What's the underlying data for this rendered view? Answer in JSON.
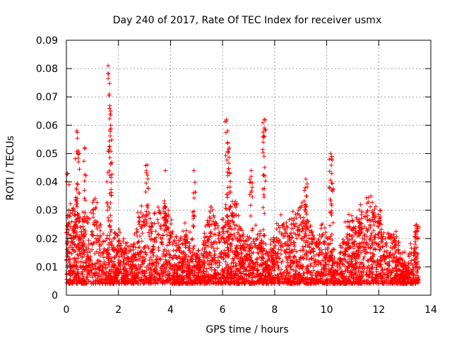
{
  "chart_data": {
    "type": "scatter",
    "title": "Day 240 of 2017, Rate Of TEC Index for receiver usmx",
    "xlabel": "GPS time / hours",
    "ylabel": "ROTI / TECUs",
    "xlim": [
      0,
      14
    ],
    "ylim": [
      0,
      0.09
    ],
    "xticks": [
      "0",
      "2",
      "4",
      "6",
      "8",
      "10",
      "12",
      "14"
    ],
    "yticks": [
      "0",
      "0.01",
      "0.02",
      "0.03",
      "0.04",
      "0.05",
      "0.06",
      "0.07",
      "0.08",
      "0.09"
    ],
    "grid": true,
    "marker": "+",
    "series": [
      {
        "name": "ROTI",
        "color": "#ff0000",
        "data_range_x": [
          0,
          13.55
        ],
        "peaks": [
          {
            "x": 0.05,
            "y": 0.043
          },
          {
            "x": 0.4,
            "y": 0.058
          },
          {
            "x": 0.45,
            "y": 0.051
          },
          {
            "x": 0.7,
            "y": 0.052
          },
          {
            "x": 1.6,
            "y": 0.081
          },
          {
            "x": 1.65,
            "y": 0.071
          },
          {
            "x": 1.7,
            "y": 0.065
          },
          {
            "x": 1.7,
            "y": 0.06
          },
          {
            "x": 3.1,
            "y": 0.046
          },
          {
            "x": 3.8,
            "y": 0.044
          },
          {
            "x": 4.9,
            "y": 0.044
          },
          {
            "x": 6.15,
            "y": 0.062
          },
          {
            "x": 6.2,
            "y": 0.058
          },
          {
            "x": 6.25,
            "y": 0.052
          },
          {
            "x": 7.6,
            "y": 0.062
          },
          {
            "x": 7.6,
            "y": 0.059
          },
          {
            "x": 7.1,
            "y": 0.044
          },
          {
            "x": 9.2,
            "y": 0.041
          },
          {
            "x": 10.15,
            "y": 0.05
          },
          {
            "x": 10.2,
            "y": 0.049
          },
          {
            "x": 11.3,
            "y": 0.032
          },
          {
            "x": 12.05,
            "y": 0.03
          },
          {
            "x": 13.45,
            "y": 0.025
          }
        ]
      }
    ]
  }
}
